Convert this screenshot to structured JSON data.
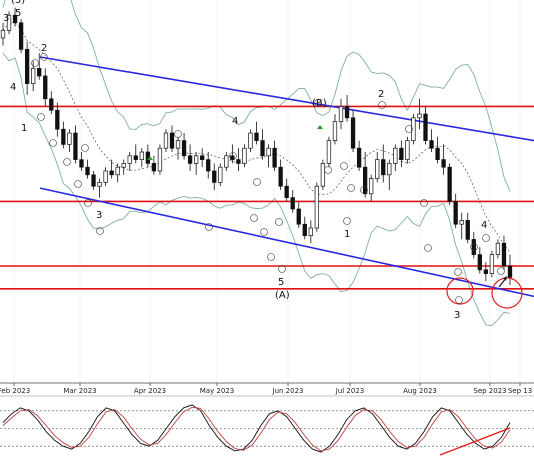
{
  "chart_data": [
    {
      "type": "candlestick",
      "x_ticks": [
        "Feb 2023",
        "Mar 2023",
        "Apr 2023",
        "May 2023",
        "Jun 2023",
        "Jul 2023",
        "Aug 2023",
        "Sep 2023",
        "Sep 13"
      ],
      "price_range": [
        0,
        100
      ],
      "horizontal_levels": [
        72,
        47,
        30,
        24
      ],
      "channel_lines": [
        {
          "from": [
            0.0,
            85.0
          ],
          "to": [
            1.0,
            63.0
          ]
        },
        {
          "from": [
            0.0,
            50.5
          ],
          "to": [
            1.0,
            22.0
          ]
        }
      ],
      "candles": [
        [
          90,
          94,
          88,
          92
        ],
        [
          92,
          97,
          91,
          96
        ],
        [
          96,
          98,
          93,
          94
        ],
        [
          94,
          95,
          86,
          87
        ],
        [
          87,
          89,
          75,
          78
        ],
        [
          78,
          84,
          76,
          82
        ],
        [
          82,
          86,
          79,
          80
        ],
        [
          80,
          82,
          72,
          74
        ],
        [
          74,
          76,
          70,
          71
        ],
        [
          71,
          73,
          64,
          66
        ],
        [
          66,
          68,
          61,
          62
        ],
        [
          62,
          66,
          60,
          65
        ],
        [
          65,
          67,
          57,
          58
        ],
        [
          58,
          60,
          55,
          56
        ],
        [
          56,
          58,
          53,
          54
        ],
        [
          54,
          55,
          50,
          51
        ],
        [
          51,
          53,
          48,
          52
        ],
        [
          52,
          56,
          51,
          55
        ],
        [
          55,
          58,
          53,
          54
        ],
        [
          54,
          57,
          52,
          56
        ],
        [
          56,
          58,
          54,
          57
        ],
        [
          57,
          60,
          55,
          59
        ],
        [
          59,
          62,
          57,
          58
        ],
        [
          58,
          61,
          56,
          60
        ],
        [
          60,
          62,
          56,
          57
        ],
        [
          57,
          59,
          54,
          55
        ],
        [
          55,
          62,
          54,
          61
        ],
        [
          61,
          66,
          60,
          65
        ],
        [
          65,
          67,
          60,
          61
        ],
        [
          61,
          64,
          58,
          63
        ],
        [
          63,
          65,
          58,
          59
        ],
        [
          59,
          62,
          55,
          57
        ],
        [
          57,
          60,
          54,
          59
        ],
        [
          59,
          61,
          56,
          58
        ],
        [
          58,
          60,
          53,
          55
        ],
        [
          55,
          57,
          50,
          52
        ],
        [
          52,
          57,
          51,
          56
        ],
        [
          56,
          60,
          55,
          59
        ],
        [
          59,
          62,
          57,
          58
        ],
        [
          58,
          61,
          55,
          57
        ],
        [
          57,
          62,
          56,
          61
        ],
        [
          61,
          66,
          60,
          65
        ],
        [
          65,
          68,
          62,
          63
        ],
        [
          63,
          66,
          58,
          59
        ],
        [
          59,
          62,
          56,
          61
        ],
        [
          61,
          63,
          55,
          56
        ],
        [
          56,
          58,
          50,
          51
        ],
        [
          51,
          53,
          47,
          48
        ],
        [
          48,
          50,
          44,
          45
        ],
        [
          45,
          47,
          40,
          41
        ],
        [
          41,
          43,
          37,
          38
        ],
        [
          38,
          42,
          36,
          40
        ],
        [
          40,
          52,
          39,
          51
        ],
        [
          51,
          58,
          50,
          57
        ],
        [
          57,
          64,
          56,
          63
        ],
        [
          63,
          70,
          62,
          68
        ],
        [
          68,
          74,
          66,
          72
        ],
        [
          72,
          75,
          68,
          69
        ],
        [
          69,
          71,
          60,
          61
        ],
        [
          61,
          63,
          55,
          56
        ],
        [
          56,
          60,
          48,
          49
        ],
        [
          49,
          54,
          47,
          53
        ],
        [
          53,
          60,
          52,
          58
        ],
        [
          58,
          62,
          52,
          54
        ],
        [
          54,
          58,
          50,
          57
        ],
        [
          57,
          62,
          55,
          61
        ],
        [
          61,
          63,
          56,
          58
        ],
        [
          58,
          64,
          57,
          63
        ],
        [
          63,
          70,
          62,
          69
        ],
        [
          69,
          74,
          66,
          70
        ],
        [
          70,
          72,
          62,
          63
        ],
        [
          63,
          66,
          60,
          61
        ],
        [
          61,
          64,
          57,
          58
        ],
        [
          58,
          62,
          54,
          56
        ],
        [
          56,
          57,
          46,
          47
        ],
        [
          47,
          49,
          40,
          41
        ],
        [
          41,
          44,
          37,
          42
        ],
        [
          42,
          44,
          36,
          37
        ],
        [
          37,
          39,
          32,
          33
        ],
        [
          33,
          35,
          28,
          29
        ],
        [
          29,
          31,
          26,
          28
        ],
        [
          28,
          34,
          27,
          33
        ],
        [
          33,
          37,
          32,
          36
        ],
        [
          36,
          38,
          29,
          30
        ],
        [
          30,
          33,
          25,
          27
        ]
      ]
    },
    {
      "type": "line",
      "series": [
        {
          "values": [
            60,
            75,
            85,
            80,
            65,
            45,
            30,
            20,
            15,
            25,
            45,
            70,
            85,
            80,
            60,
            40,
            25,
            20,
            30,
            50,
            70,
            85,
            90,
            80,
            55,
            35,
            20,
            12,
            15,
            30,
            55,
            75,
            80,
            70,
            50,
            30,
            15,
            10,
            20,
            40,
            65,
            80,
            85,
            75,
            55,
            35,
            20,
            15,
            25,
            45,
            70,
            85,
            80,
            60,
            40,
            25,
            15,
            20,
            35,
            60
          ]
        },
        {
          "values": [
            55,
            68,
            80,
            82,
            72,
            55,
            38,
            26,
            18,
            20,
            35,
            58,
            78,
            82,
            70,
            50,
            32,
            22,
            25,
            40,
            60,
            78,
            86,
            84,
            66,
            45,
            28,
            16,
            13,
            22,
            42,
            65,
            78,
            75,
            60,
            40,
            22,
            12,
            15,
            30,
            52,
            72,
            82,
            80,
            65,
            45,
            28,
            18,
            20,
            35,
            58,
            78,
            82,
            70,
            50,
            32,
            20,
            17,
            27,
            48
          ]
        }
      ],
      "y_range": [
        0,
        100
      ],
      "guide_levels": [
        80,
        50,
        20
      ]
    }
  ]
}
